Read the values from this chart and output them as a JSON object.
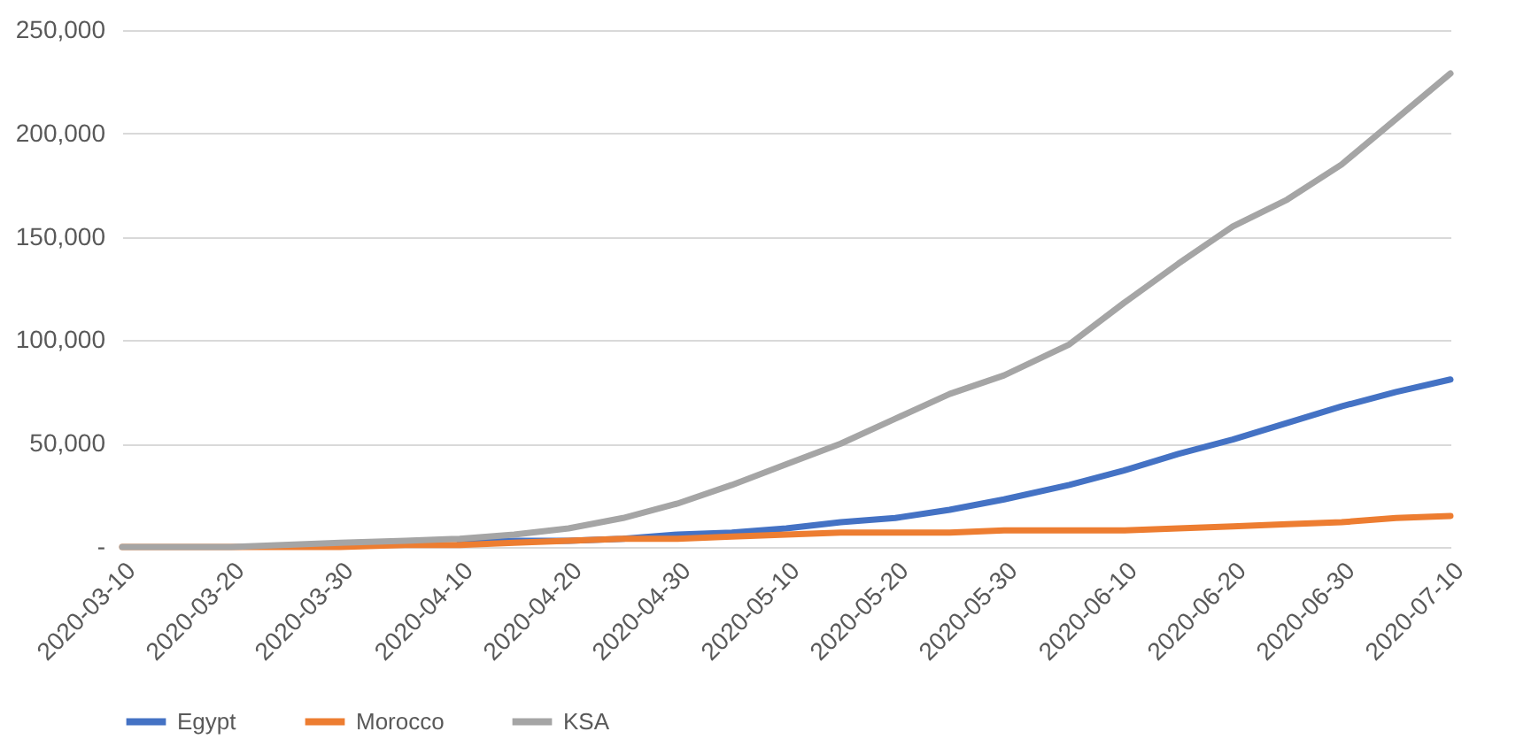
{
  "chart_data": {
    "type": "line",
    "x": [
      "2020-03-10",
      "2020-03-20",
      "2020-03-30",
      "2020-04-05",
      "2020-04-10",
      "2020-04-15",
      "2020-04-20",
      "2020-04-25",
      "2020-04-30",
      "2020-05-05",
      "2020-05-10",
      "2020-05-15",
      "2020-05-20",
      "2020-05-25",
      "2020-05-30",
      "2020-06-05",
      "2020-06-10",
      "2020-06-15",
      "2020-06-20",
      "2020-06-25",
      "2020-06-30",
      "2020-07-05",
      "2020-07-10"
    ],
    "series": [
      {
        "name": "Egypt",
        "color": "#4472c4",
        "values": [
          null,
          null,
          null,
          null,
          2000,
          3000,
          3000,
          4000,
          6000,
          7000,
          9000,
          12000,
          14000,
          18000,
          23000,
          30000,
          37000,
          45000,
          52000,
          60000,
          68000,
          75000,
          81000
        ]
      },
      {
        "name": "Morocco",
        "color": "#ed7d31",
        "values": [
          0,
          0,
          0,
          1000,
          1000,
          2000,
          3000,
          4000,
          4000,
          5000,
          6000,
          7000,
          7000,
          7000,
          8000,
          8000,
          8000,
          9000,
          10000,
          11000,
          12000,
          14000,
          15000
        ]
      },
      {
        "name": "KSA",
        "color": "#a5a5a5",
        "values": [
          0,
          0,
          2000,
          3000,
          4000,
          6000,
          9000,
          14000,
          21000,
          30000,
          40000,
          50000,
          62000,
          74000,
          83000,
          98000,
          118000,
          137000,
          155000,
          168000,
          185000,
          207000,
          229000
        ]
      }
    ],
    "xlim": [
      "2020-03-10",
      "2020-07-10"
    ],
    "xticks": [
      "2020-03-10",
      "2020-03-20",
      "2020-03-30",
      "2020-04-10",
      "2020-04-20",
      "2020-04-30",
      "2020-05-10",
      "2020-05-20",
      "2020-05-30",
      "2020-06-10",
      "2020-06-20",
      "2020-06-30",
      "2020-07-10"
    ],
    "ylim": [
      0,
      250000
    ],
    "yticks": [
      {
        "value": 0,
        "label": "-"
      },
      {
        "value": 50000,
        "label": "50,000"
      },
      {
        "value": 100000,
        "label": "100,000"
      },
      {
        "value": 150000,
        "label": "150,000"
      },
      {
        "value": 200000,
        "label": "200,000"
      },
      {
        "value": 250000,
        "label": "250,000"
      }
    ],
    "grid": "y",
    "legend": "bottom",
    "marker": "none",
    "line_style": "solid"
  }
}
